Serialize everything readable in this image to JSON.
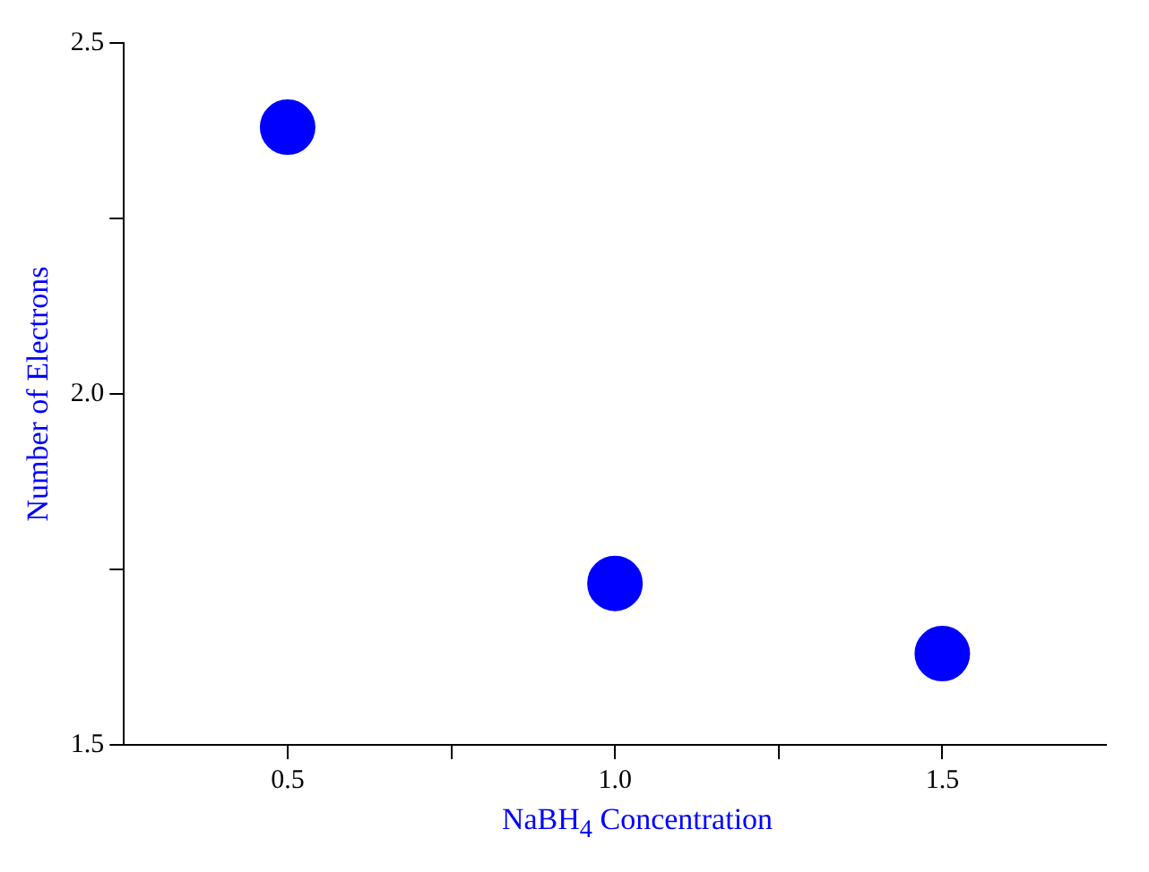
{
  "chart_data": {
    "type": "scatter",
    "xlabel": "NaBH$_{4}$ Concentration",
    "ylabel": "Number of Electrons",
    "x": [
      0.5,
      1.0,
      1.5
    ],
    "series": [
      {
        "color": "#0000ff",
        "values": [
          2.38,
          1.73,
          1.63
        ]
      }
    ],
    "xlim": [
      0.25,
      1.75
    ],
    "xticks": [
      {
        "value": 0.5,
        "label": "0.5"
      },
      {
        "value": 0.75,
        "label": null
      },
      {
        "value": 1,
        "label": "1.0"
      },
      {
        "value": 1.25,
        "label": null
      },
      {
        "value": 1.5,
        "label": "1.5"
      }
    ],
    "ylim": [
      1.5,
      2.5
    ],
    "yticks": [
      {
        "value": 1.5,
        "label": "1.5"
      },
      {
        "value": 1.75,
        "label": null
      },
      {
        "value": 2,
        "label": "2.0"
      },
      {
        "value": 2.25,
        "label": null
      },
      {
        "value": 2.5,
        "label": "2.5"
      }
    ],
    "grid": false,
    "legend": false,
    "marker": "circle"
  }
}
